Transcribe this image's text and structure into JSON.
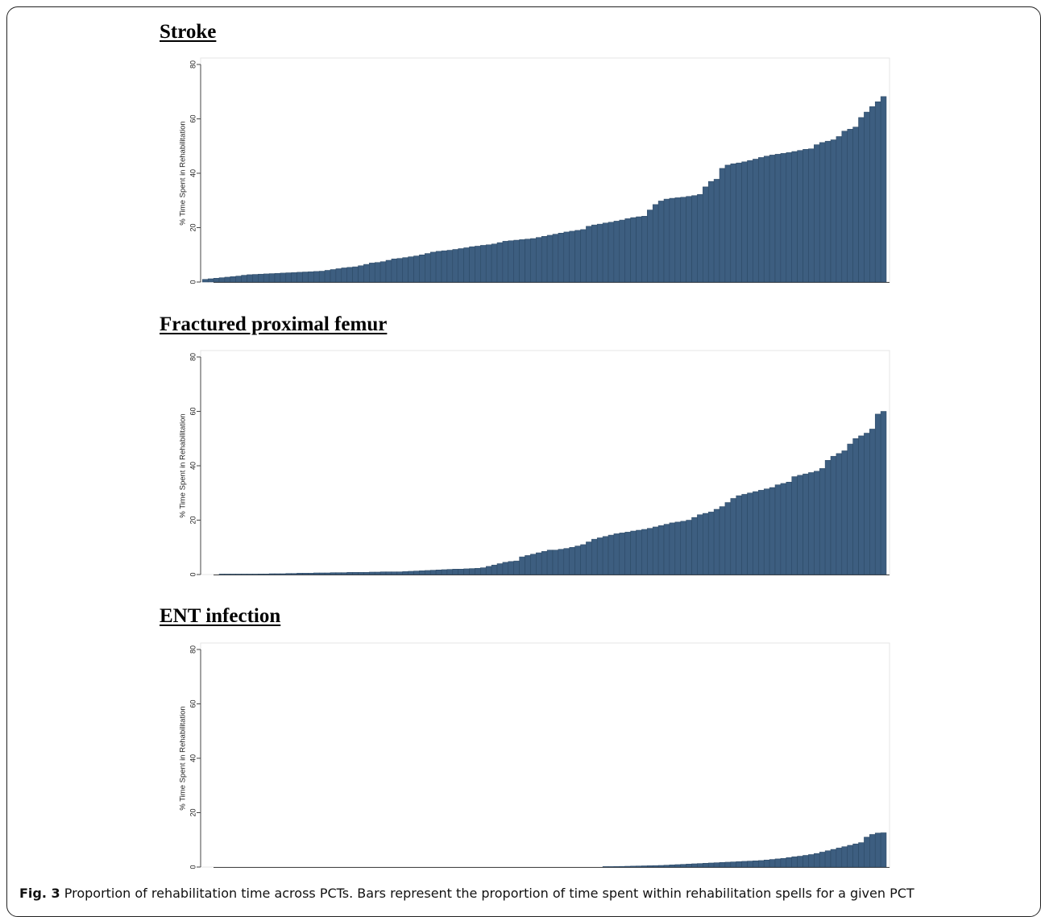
{
  "caption": {
    "fig_label": "Fig. 3",
    "text": "Proportion of rehabilitation time across PCTs. Bars represent the proportion of time spent within rehabilitation spells for a given PCT"
  },
  "colors": {
    "bar": "#3d5e80",
    "bar_edge": "#2a4763",
    "axis": "#444444",
    "plot_edge": "#e6e6e6"
  },
  "chart_data": [
    {
      "type": "bar",
      "title": "Stroke",
      "ylabel": "% Time Spent in Rehabilitation",
      "ylim": [
        0,
        80
      ],
      "yticks": [
        0,
        20,
        40,
        60,
        80
      ],
      "xlabel": "",
      "grid": false,
      "values": [
        1,
        1.2,
        1.4,
        1.6,
        1.8,
        2,
        2.2,
        2.5,
        2.7,
        2.8,
        2.9,
        3,
        3.1,
        3.2,
        3.3,
        3.4,
        3.5,
        3.6,
        3.7,
        3.8,
        3.9,
        4,
        4.3,
        4.6,
        4.9,
        5.2,
        5.4,
        5.6,
        6,
        6.5,
        7,
        7.2,
        7.5,
        8,
        8.5,
        8.7,
        9,
        9.3,
        9.6,
        10,
        10.5,
        11,
        11.3,
        11.5,
        11.7,
        12,
        12.3,
        12.6,
        13,
        13.2,
        13.5,
        13.7,
        14,
        14.5,
        15,
        15.2,
        15.4,
        15.6,
        15.8,
        16,
        16.4,
        16.8,
        17.2,
        17.6,
        18,
        18.4,
        18.7,
        19,
        19.3,
        20.5,
        21,
        21.3,
        21.7,
        22,
        22.4,
        22.8,
        23.3,
        23.7,
        24,
        24.2,
        26.5,
        28.5,
        29.8,
        30.5,
        30.8,
        31,
        31.2,
        31.5,
        31.8,
        32.2,
        35,
        37,
        37.8,
        41.8,
        43,
        43.5,
        43.8,
        44.2,
        44.7,
        45.2,
        45.8,
        46.3,
        46.7,
        47,
        47.3,
        47.6,
        48,
        48.4,
        48.8,
        49,
        50.5,
        51.3,
        51.8,
        52.3,
        53.5,
        55.5,
        56.2,
        57,
        60.5,
        62.5,
        64.5,
        66.3,
        68.2
      ]
    },
    {
      "type": "bar",
      "title": "Fractured proximal femur",
      "ylabel": "% Time Spent in Rehabilitation",
      "ylim": [
        0,
        80
      ],
      "yticks": [
        0,
        20,
        40,
        60,
        80
      ],
      "xlabel": "",
      "grid": false,
      "values": [
        0.1,
        0.1,
        0.1,
        0.1,
        0.1,
        0.1,
        0.1,
        0.2,
        0.2,
        0.3,
        0.3,
        0.3,
        0.4,
        0.4,
        0.5,
        0.5,
        0.5,
        0.6,
        0.6,
        0.6,
        0.7,
        0.7,
        0.7,
        0.8,
        0.8,
        0.8,
        0.8,
        0.9,
        0.9,
        1,
        1,
        1,
        1,
        1.1,
        1.2,
        1.3,
        1.4,
        1.5,
        1.6,
        1.7,
        1.8,
        1.9,
        2,
        2,
        2.1,
        2.2,
        2.3,
        2.5,
        3,
        3.5,
        4,
        4.5,
        4.8,
        5,
        6.5,
        7,
        7.5,
        8,
        8.5,
        9,
        9,
        9.3,
        9.6,
        10,
        10.5,
        11,
        12,
        13,
        13.5,
        14,
        14.5,
        15,
        15.3,
        15.6,
        16,
        16.3,
        16.6,
        17,
        17.5,
        18,
        18.5,
        19,
        19.3,
        19.6,
        20,
        21,
        22,
        22.5,
        23,
        24,
        25,
        26.5,
        28,
        29,
        29.5,
        30,
        30.5,
        31,
        31.5,
        32,
        33,
        33.5,
        34,
        36,
        36.5,
        37,
        37.5,
        38,
        39,
        42,
        43.5,
        44.5,
        45.5,
        48,
        50,
        51,
        52,
        53.5,
        59,
        60
      ]
    },
    {
      "type": "bar",
      "title": "ENT infection",
      "ylabel": "% Time Spent in Rehabilitation",
      "ylim": [
        0,
        80
      ],
      "yticks": [
        0,
        20,
        40,
        60,
        80
      ],
      "xlabel": "",
      "grid": false,
      "values": [
        0.1,
        0.15,
        0.2,
        0.25,
        0.3,
        0.35,
        0.4,
        0.45,
        0.5,
        0.55,
        0.6,
        0.7,
        0.8,
        0.9,
        1,
        1.1,
        1.2,
        1.3,
        1.4,
        1.5,
        1.6,
        1.7,
        1.8,
        1.9,
        2,
        2.1,
        2.2,
        2.3,
        2.4,
        2.6,
        2.8,
        3,
        3.2,
        3.5,
        3.8,
        4,
        4.3,
        4.6,
        5,
        5.5,
        6,
        6.5,
        7,
        7.5,
        8,
        8.5,
        9,
        11,
        12,
        12.5,
        12.6
      ]
    }
  ]
}
